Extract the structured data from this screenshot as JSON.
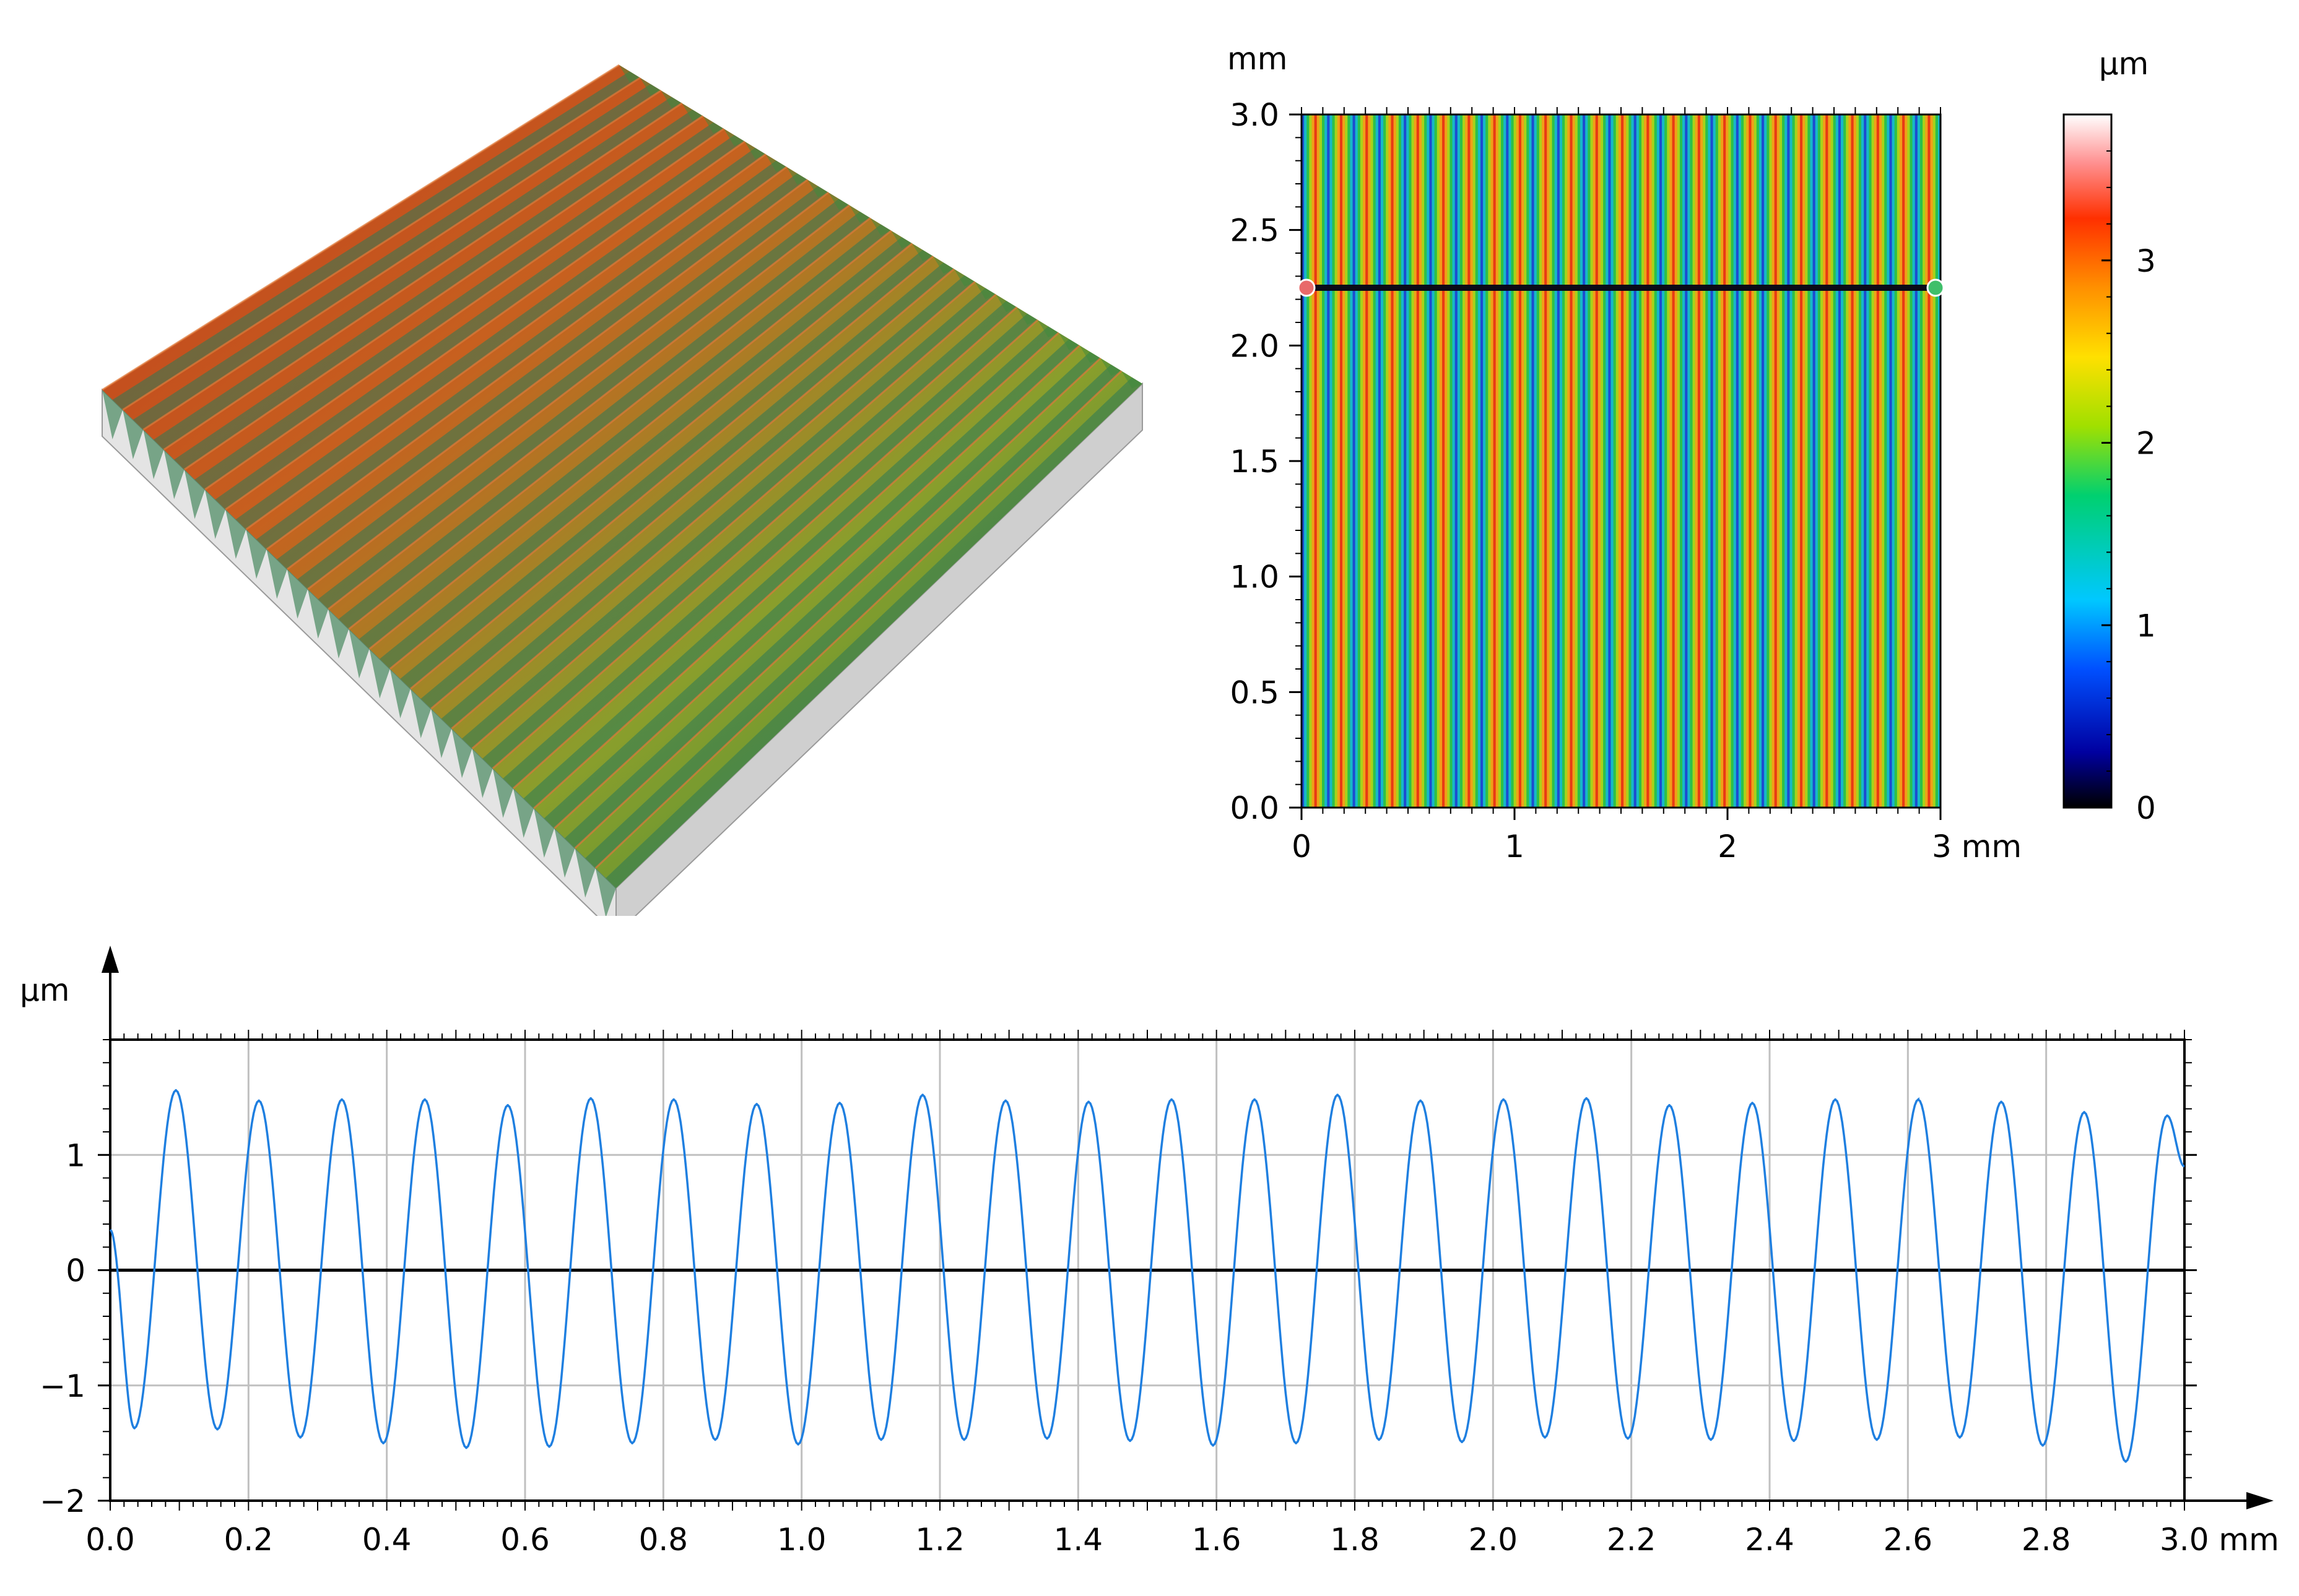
{
  "chart_data": [
    {
      "type": "surface3d",
      "title": "",
      "ridge_count": 25,
      "colors": [
        "#b83218",
        "#c85a1e",
        "#8fa02a",
        "#3f9a3e",
        "#1d6f80",
        "#dcdcdc"
      ]
    },
    {
      "type": "heatmap",
      "x_unit": "mm",
      "y_unit": "mm",
      "colorbar_unit": "µm",
      "xlim": [
        0,
        3
      ],
      "ylim": [
        0,
        3.0
      ],
      "x_ticks": [
        "0",
        "1",
        "2",
        "3 mm"
      ],
      "y_ticks": [
        "0.0",
        "0.5",
        "1.0",
        "1.5",
        "2.0",
        "2.5",
        "3.0"
      ],
      "colorbar_range": [
        0,
        3.8
      ],
      "colorbar_ticks": [
        "0",
        "1",
        "2",
        "3"
      ],
      "stripe_count": 25,
      "profile_line_y": 2.25
    },
    {
      "type": "line",
      "y_unit": "µm",
      "xlim": [
        0,
        3.0
      ],
      "ylim": [
        -2,
        2
      ],
      "x_ticks": [
        "0.0",
        "0.2",
        "0.4",
        "0.6",
        "0.8",
        "1.0",
        "1.2",
        "1.4",
        "1.6",
        "1.8",
        "2.0",
        "2.2",
        "2.4",
        "2.6",
        "2.8",
        "3.0 mm"
      ],
      "y_ticks": [
        "−2",
        "−1",
        "0",
        "1"
      ],
      "series_color": "#1f7fe0",
      "peaks": [
        {
          "x": 0.095,
          "y": 1.56
        },
        {
          "x": 0.215,
          "y": 1.47
        },
        {
          "x": 0.335,
          "y": 1.48
        },
        {
          "x": 0.455,
          "y": 1.48
        },
        {
          "x": 0.575,
          "y": 1.43
        },
        {
          "x": 0.695,
          "y": 1.49
        },
        {
          "x": 0.815,
          "y": 1.48
        },
        {
          "x": 0.935,
          "y": 1.44
        },
        {
          "x": 1.055,
          "y": 1.45
        },
        {
          "x": 1.175,
          "y": 1.52
        },
        {
          "x": 1.295,
          "y": 1.47
        },
        {
          "x": 1.415,
          "y": 1.46
        },
        {
          "x": 1.535,
          "y": 1.48
        },
        {
          "x": 1.655,
          "y": 1.48
        },
        {
          "x": 1.775,
          "y": 1.52
        },
        {
          "x": 1.895,
          "y": 1.47
        },
        {
          "x": 2.015,
          "y": 1.48
        },
        {
          "x": 2.135,
          "y": 1.49
        },
        {
          "x": 2.255,
          "y": 1.43
        },
        {
          "x": 2.375,
          "y": 1.45
        },
        {
          "x": 2.495,
          "y": 1.48
        },
        {
          "x": 2.615,
          "y": 1.48
        },
        {
          "x": 2.735,
          "y": 1.46
        },
        {
          "x": 2.855,
          "y": 1.37
        },
        {
          "x": 2.975,
          "y": 1.34
        }
      ],
      "valleys": [
        {
          "x": 0.035,
          "y": -1.37
        },
        {
          "x": 0.155,
          "y": -1.38
        },
        {
          "x": 0.275,
          "y": -1.45
        },
        {
          "x": 0.395,
          "y": -1.5
        },
        {
          "x": 0.515,
          "y": -1.54
        },
        {
          "x": 0.635,
          "y": -1.53
        },
        {
          "x": 0.755,
          "y": -1.5
        },
        {
          "x": 0.875,
          "y": -1.47
        },
        {
          "x": 0.995,
          "y": -1.51
        },
        {
          "x": 1.115,
          "y": -1.47
        },
        {
          "x": 1.235,
          "y": -1.47
        },
        {
          "x": 1.355,
          "y": -1.46
        },
        {
          "x": 1.475,
          "y": -1.48
        },
        {
          "x": 1.595,
          "y": -1.52
        },
        {
          "x": 1.715,
          "y": -1.5
        },
        {
          "x": 1.835,
          "y": -1.47
        },
        {
          "x": 1.955,
          "y": -1.49
        },
        {
          "x": 2.075,
          "y": -1.45
        },
        {
          "x": 2.195,
          "y": -1.46
        },
        {
          "x": 2.315,
          "y": -1.47
        },
        {
          "x": 2.435,
          "y": -1.48
        },
        {
          "x": 2.555,
          "y": -1.47
        },
        {
          "x": 2.675,
          "y": -1.45
        },
        {
          "x": 2.795,
          "y": -1.52
        },
        {
          "x": 2.915,
          "y": -1.66
        }
      ]
    }
  ]
}
